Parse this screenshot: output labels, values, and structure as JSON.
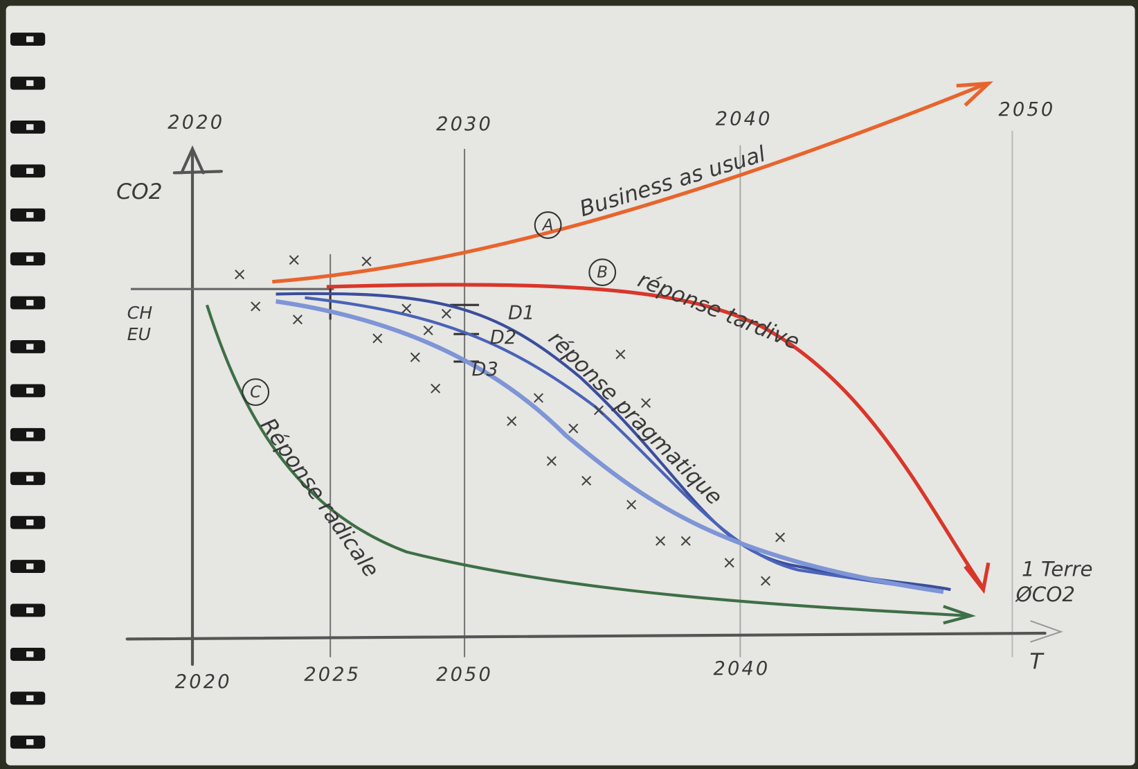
{
  "top_axis": {
    "labels": [
      "2020",
      "2030",
      "2040",
      "2050"
    ]
  },
  "bottom_axis": {
    "labels": [
      "2020",
      "2025",
      "2050",
      "2040"
    ],
    "unit": "T"
  },
  "y_axis": {
    "label": "CO2",
    "origin_labels": [
      "CH",
      "EU"
    ]
  },
  "curves": [
    {
      "marker": "A",
      "label": "Business as usual"
    },
    {
      "marker": "B",
      "label": "réponse tardive"
    },
    {
      "marker": "C",
      "label": "Réponse radicale"
    },
    {
      "markers": [
        "D1",
        "D2",
        "D3"
      ],
      "label": "réponse pragmatique"
    }
  ],
  "target": {
    "lines": [
      "1 Terre",
      "ØCO2"
    ]
  }
}
